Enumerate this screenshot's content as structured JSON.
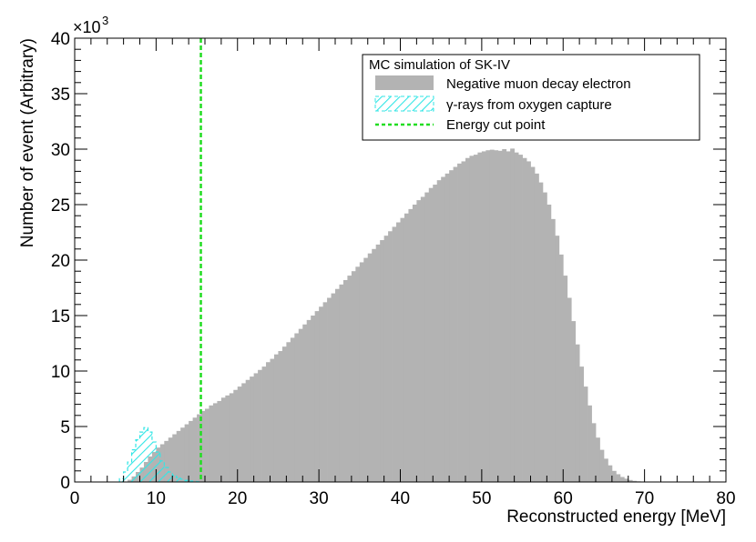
{
  "chart_data": {
    "type": "bar",
    "title": "",
    "xlabel": "Reconstructed energy [MeV]",
    "ylabel": "Number of event (Arbitrary)",
    "xlim": [
      0,
      80
    ],
    "ylim": [
      0,
      40000
    ],
    "y_multiplier_label": "×10",
    "y_multiplier_exponent": "3",
    "x_ticks": [
      0,
      10,
      20,
      30,
      40,
      50,
      60,
      70,
      80
    ],
    "y_ticks": [
      0,
      5,
      10,
      15,
      20,
      25,
      30,
      35,
      40
    ],
    "grid": false,
    "legend": {
      "title": "MC simulation of SK-IV",
      "placement": "top-right",
      "entries": [
        {
          "label": "Negative muon decay electron",
          "style": "filled",
          "color": "#b3b3b3"
        },
        {
          "label": "γ-rays from oxygen capture",
          "style": "hatched",
          "color": "#33e6e6"
        },
        {
          "label": "Energy cut point",
          "style": "dashed-line",
          "color": "#22dd22"
        }
      ]
    },
    "bin_width": 0.5,
    "series": [
      {
        "name": "Negative muon decay electron",
        "color": "#b3b3b3",
        "x_start": 6.5,
        "values": [
          200,
          500,
          900,
          1300,
          1800,
          2300,
          2700,
          3100,
          3400,
          3700,
          4000,
          4300,
          4600,
          4900,
          5200,
          5500,
          5800,
          6100,
          6400,
          6600,
          6900,
          7100,
          7300,
          7600,
          7800,
          8000,
          8300,
          8600,
          8900,
          9200,
          9500,
          9800,
          10100,
          10400,
          10800,
          11100,
          11500,
          11800,
          12200,
          12600,
          13000,
          13400,
          13800,
          14200,
          14600,
          15000,
          15400,
          15800,
          16200,
          16600,
          17000,
          17400,
          17800,
          18200,
          18600,
          19000,
          19400,
          19800,
          20200,
          20600,
          21000,
          21400,
          21800,
          22200,
          22600,
          23000,
          23400,
          23800,
          24200,
          24600,
          25000,
          25400,
          25700,
          26100,
          26500,
          26800,
          27200,
          27500,
          27800,
          28100,
          28400,
          28700,
          28900,
          29200,
          29400,
          29500,
          29700,
          29800,
          29900,
          29950,
          29900,
          29850,
          30000,
          29800,
          30050,
          29700,
          29500,
          29200,
          28900,
          28400,
          27800,
          27000,
          26100,
          25000,
          23700,
          22200,
          20500,
          18600,
          16600,
          14500,
          12400,
          10400,
          8600,
          6900,
          5300,
          4000,
          2900,
          2100,
          1500,
          1000,
          700,
          450,
          300,
          180,
          100,
          60,
          30,
          15
        ]
      },
      {
        "name": "γ-rays from oxygen capture",
        "color": "#33e6e6",
        "x_start": 5.5,
        "values": [
          300,
          900,
          1800,
          2900,
          3800,
          4500,
          4900,
          4500,
          3600,
          2700,
          1900,
          1300,
          900,
          600,
          400,
          250,
          150,
          80,
          40,
          20
        ]
      }
    ],
    "vertical_line": {
      "x": 15.5,
      "label": "Energy cut point",
      "color": "#22dd22"
    }
  }
}
